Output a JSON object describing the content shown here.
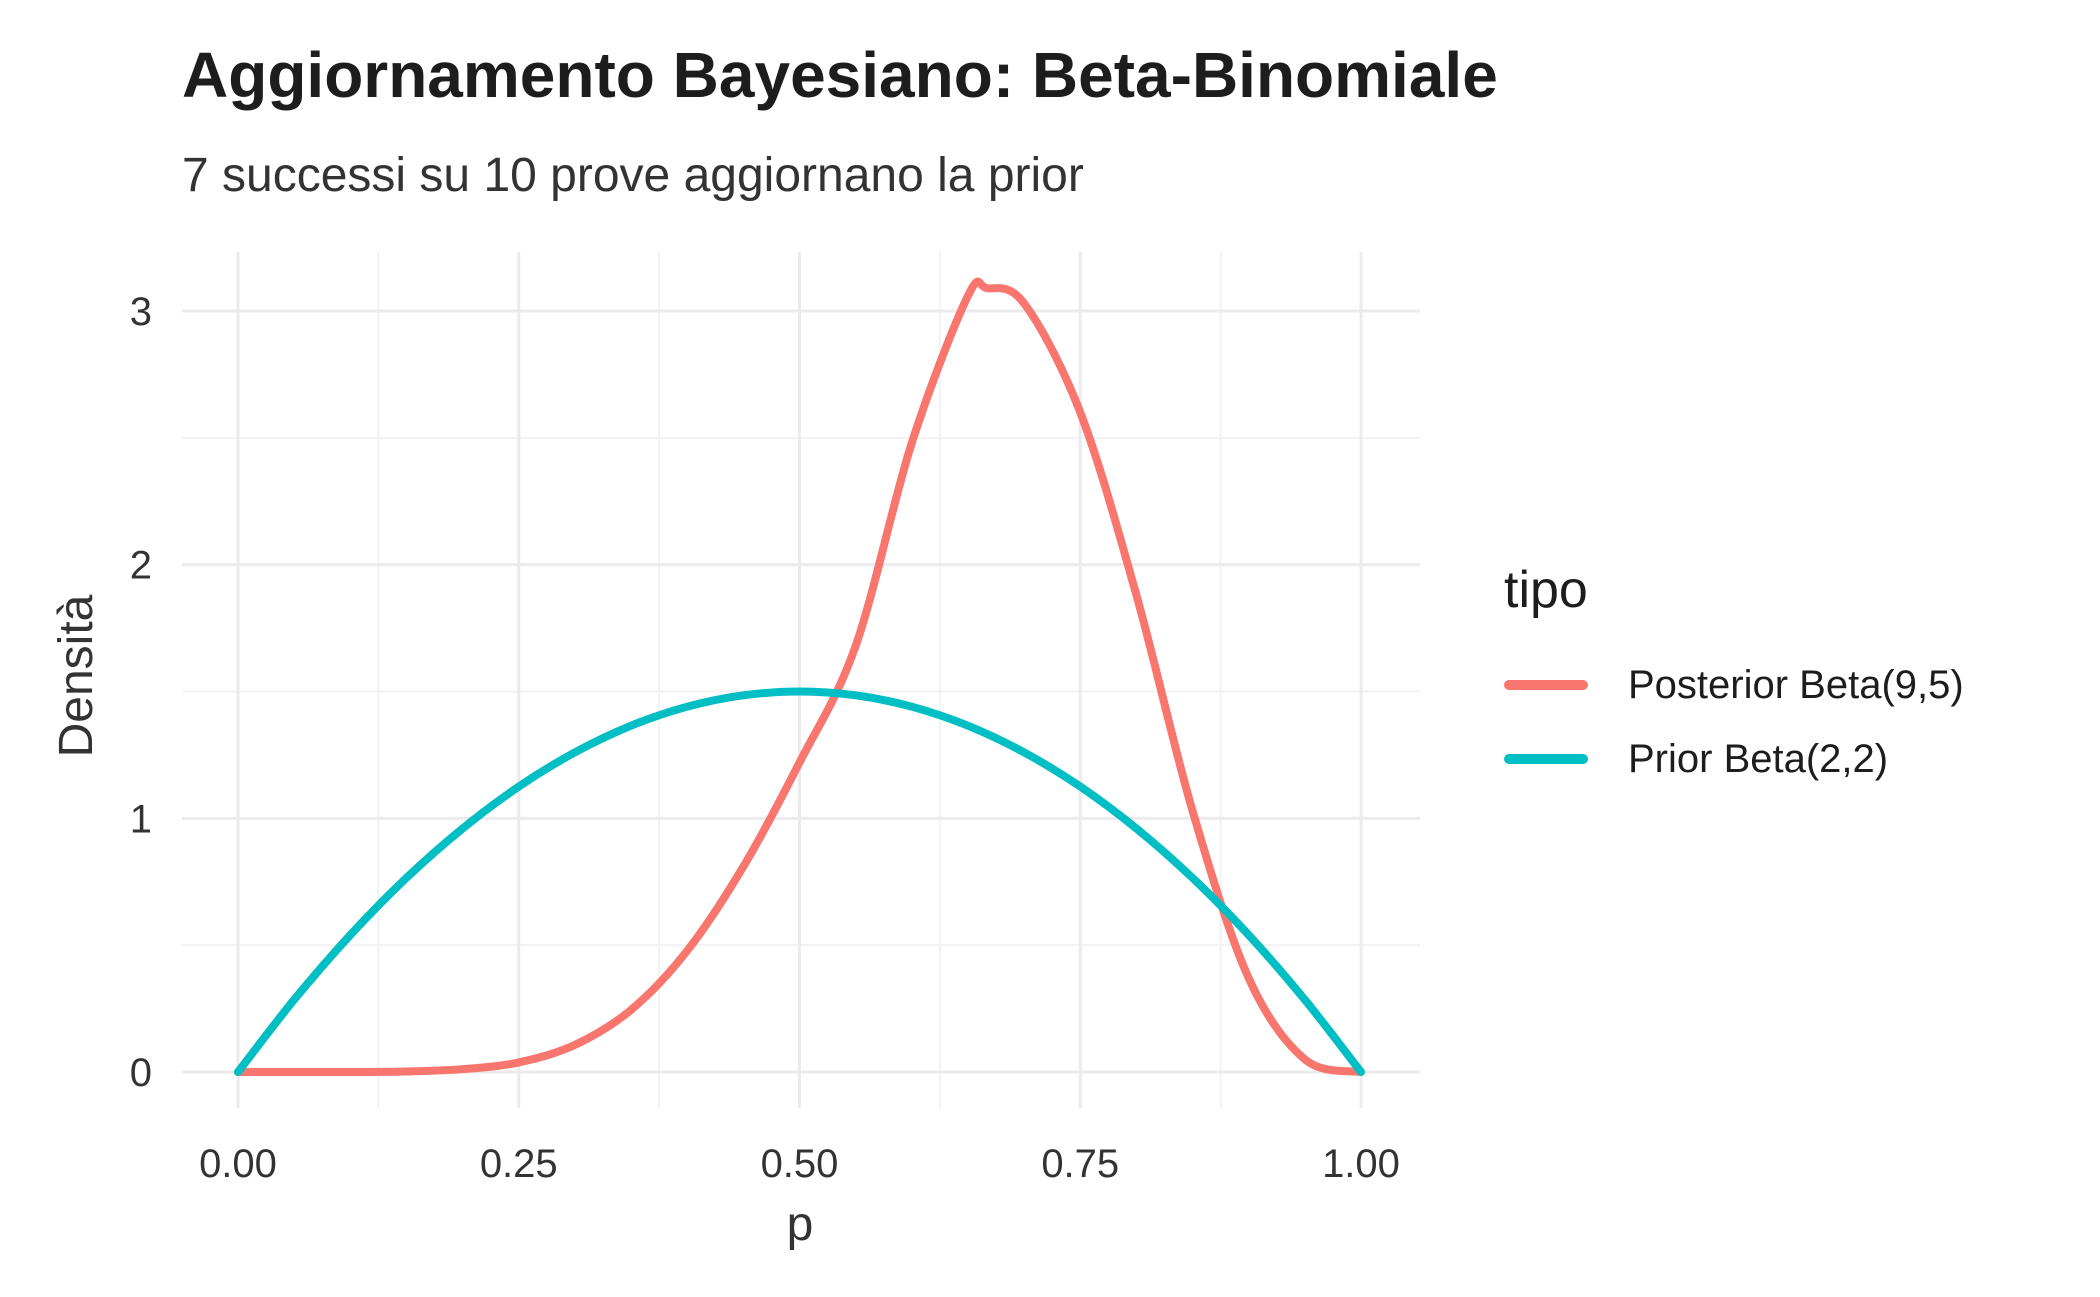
{
  "chart_data": {
    "type": "line",
    "title": "Aggiornamento Bayesiano: Beta-Binomiale",
    "subtitle": "7 successi su 10 prove aggiornano la prior",
    "xlabel": "p",
    "ylabel": "Densità",
    "xlim": [
      0,
      1
    ],
    "ylim": [
      0,
      3.2
    ],
    "x_ticks": [
      "0.00",
      "0.25",
      "0.50",
      "0.75",
      "1.00"
    ],
    "y_ticks": [
      "0",
      "1",
      "2",
      "3"
    ],
    "grid": true,
    "legend": {
      "title": "tipo",
      "position": "right"
    },
    "series": [
      {
        "name": "Posterior Beta(9,5)",
        "color": "#F8766D",
        "x": [
          0.0,
          0.05,
          0.1,
          0.15,
          0.2,
          0.25,
          0.3,
          0.35,
          0.4,
          0.45,
          0.5,
          0.55,
          0.6,
          0.65,
          0.667,
          0.7,
          0.75,
          0.8,
          0.85,
          0.9,
          0.95,
          1.0
        ],
        "y": [
          0.0,
          0.0,
          0.0,
          0.002,
          0.011,
          0.038,
          0.107,
          0.245,
          0.478,
          0.81,
          1.22,
          1.68,
          2.48,
          3.06,
          3.09,
          3.03,
          2.6,
          1.88,
          1.03,
          0.37,
          0.05,
          0.0
        ]
      },
      {
        "name": "Prior Beta(2,2)",
        "color": "#00BFC4",
        "x": [
          0.0,
          0.05,
          0.1,
          0.15,
          0.2,
          0.25,
          0.3,
          0.35,
          0.4,
          0.45,
          0.5,
          0.55,
          0.6,
          0.65,
          0.7,
          0.75,
          0.8,
          0.85,
          0.9,
          0.95,
          1.0
        ],
        "y": [
          0.0,
          0.285,
          0.54,
          0.765,
          0.96,
          1.125,
          1.26,
          1.365,
          1.44,
          1.485,
          1.5,
          1.485,
          1.44,
          1.365,
          1.26,
          1.125,
          0.96,
          0.765,
          0.54,
          0.285,
          0.0
        ]
      }
    ]
  }
}
